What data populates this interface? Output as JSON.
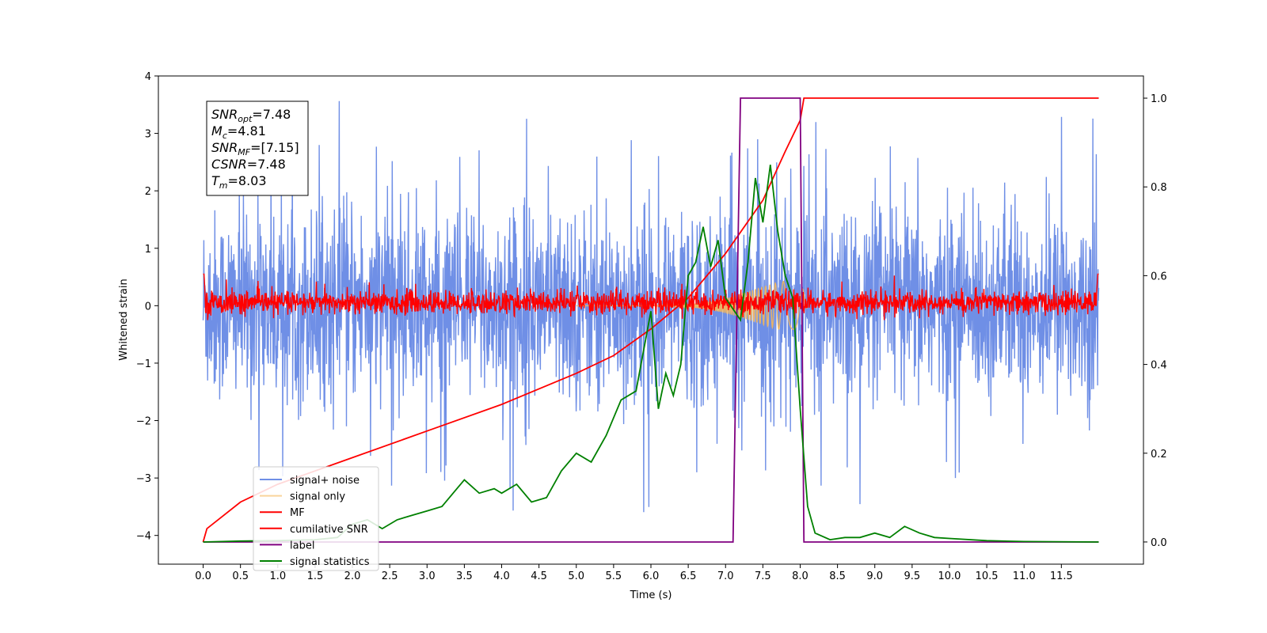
{
  "chart_data": {
    "type": "line",
    "xlabel": "Time (s)",
    "ylabel": "Whitened strain",
    "xlim": [
      -0.6,
      12.6
    ],
    "ylim": [
      -4.5,
      4.0
    ],
    "y2lim": [
      -0.05,
      1.05
    ],
    "x_ticks": [
      "0.0",
      "0.5",
      "1.0",
      "1.5",
      "2.0",
      "2.5",
      "3.0",
      "3.5",
      "4.0",
      "4.5",
      "5.0",
      "5.5",
      "6.0",
      "6.5",
      "7.0",
      "7.5",
      "8.0",
      "8.5",
      "9.0",
      "9.5",
      "10.0",
      "10.5",
      "11.0",
      "11.5"
    ],
    "y_ticks": [
      "4",
      "3",
      "2",
      "1",
      "0",
      "−1",
      "−2",
      "−3",
      "−4"
    ],
    "y2_ticks": [
      "1.0",
      "0.8",
      "0.6",
      "0.4",
      "0.2",
      "0.0"
    ],
    "legend_position": "lower-left",
    "colors": {
      "signal_noise": "#6f8fe6",
      "signal_only": "#f5b75a",
      "mf": "#ff0000",
      "cumulative_snr": "#ff0000",
      "label": "#800080",
      "signal_statistics": "#008000"
    },
    "annotation": {
      "lines": [
        {
          "var": "SNR",
          "sub": "opt",
          "value": "=7.48"
        },
        {
          "var": "M",
          "sub": "c",
          "value": "=4.81"
        },
        {
          "var": "SNR",
          "sub": "MF",
          "value": "=[7.15]"
        },
        {
          "var": "CSNR",
          "sub": "",
          "value": "=7.48"
        },
        {
          "var": "T",
          "sub": "m",
          "value": "=8.03"
        }
      ]
    },
    "series": [
      {
        "name": "signal+ noise",
        "axis": "left",
        "description_range": [
          -2.0,
          2.0
        ],
        "x_range": [
          0.0,
          12.0
        ]
      },
      {
        "name": "signal only",
        "axis": "left",
        "peak_time": 8.0,
        "peak_amplitude": 0.45
      },
      {
        "name": "MF",
        "axis": "left",
        "x_range": [
          0.0,
          12.0
        ],
        "band": [
          -0.15,
          0.35
        ]
      },
      {
        "name": "cumilative SNR",
        "axis": "right",
        "x": [
          0.0,
          0.05,
          0.5,
          1.0,
          2.0,
          3.0,
          4.0,
          5.0,
          5.5,
          6.0,
          6.5,
          7.0,
          7.5,
          7.8,
          8.0,
          8.05,
          12.0
        ],
        "y": [
          0.0,
          0.03,
          0.09,
          0.13,
          0.19,
          0.25,
          0.31,
          0.38,
          0.42,
          0.48,
          0.55,
          0.65,
          0.77,
          0.88,
          0.95,
          1.0,
          1.0
        ]
      },
      {
        "name": "label",
        "axis": "right",
        "x": [
          0.0,
          7.1,
          7.2,
          8.0,
          8.05,
          12.0
        ],
        "y": [
          0.0,
          0.0,
          1.0,
          1.0,
          0.0,
          0.0
        ]
      },
      {
        "name": "signal statistics",
        "axis": "right",
        "x": [
          0.0,
          0.5,
          1.0,
          1.5,
          1.8,
          2.0,
          2.2,
          2.4,
          2.6,
          2.8,
          3.0,
          3.2,
          3.4,
          3.5,
          3.7,
          3.9,
          4.0,
          4.2,
          4.4,
          4.6,
          4.8,
          5.0,
          5.2,
          5.4,
          5.6,
          5.8,
          6.0,
          6.1,
          6.2,
          6.3,
          6.4,
          6.5,
          6.6,
          6.7,
          6.8,
          6.9,
          7.0,
          7.2,
          7.3,
          7.4,
          7.5,
          7.6,
          7.7,
          7.8,
          7.9,
          8.0,
          8.1,
          8.2,
          8.4,
          8.6,
          8.8,
          9.0,
          9.2,
          9.4,
          9.6,
          9.8,
          10.0,
          10.5,
          11.0,
          12.0
        ],
        "y": [
          0.0,
          0.002,
          0.003,
          0.005,
          0.01,
          0.04,
          0.05,
          0.03,
          0.05,
          0.06,
          0.07,
          0.08,
          0.12,
          0.14,
          0.11,
          0.12,
          0.11,
          0.13,
          0.09,
          0.1,
          0.16,
          0.2,
          0.18,
          0.24,
          0.32,
          0.34,
          0.52,
          0.3,
          0.38,
          0.33,
          0.4,
          0.6,
          0.63,
          0.71,
          0.62,
          0.68,
          0.55,
          0.5,
          0.63,
          0.82,
          0.72,
          0.85,
          0.7,
          0.6,
          0.55,
          0.3,
          0.08,
          0.02,
          0.005,
          0.01,
          0.01,
          0.02,
          0.01,
          0.035,
          0.02,
          0.01,
          0.008,
          0.003,
          0.001,
          0.0
        ]
      }
    ]
  }
}
